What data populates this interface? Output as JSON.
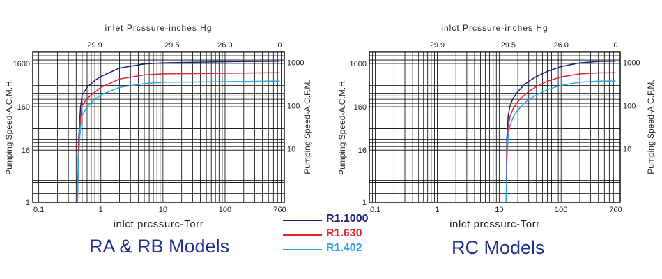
{
  "series_styles": [
    {
      "name": "R1.1000",
      "color": "#1a1f7a"
    },
    {
      "name": "R1.630",
      "color": "#e0262b"
    },
    {
      "name": "R1.402",
      "color": "#2aa6df"
    }
  ],
  "chart_data": [
    {
      "type": "line",
      "title": "RA & RB Models",
      "xlabel": "inlct prcssurc-Torr",
      "x2label": "inlet  Prcssure-inches Hg",
      "ylabel": "Pumping Speed-A.C.M.H.",
      "y2label": "Pumping Speed-A.C.F.M.",
      "x_scale": "log",
      "y_scale": "log",
      "xlim": [
        0.08,
        900
      ],
      "ylim": [
        1,
        3000
      ],
      "x_ticks": [
        {
          "v": 0.1,
          "t": "0.1"
        },
        {
          "v": 1,
          "t": "1"
        },
        {
          "v": 10,
          "t": "10"
        },
        {
          "v": 100,
          "t": "100"
        },
        {
          "v": 760,
          "t": "760"
        }
      ],
      "x2_ticks": [
        {
          "v": 0.8,
          "t": "29.9"
        },
        {
          "v": 14,
          "t": "29.5"
        },
        {
          "v": 100,
          "t": "26.0"
        },
        {
          "v": 760,
          "t": "0"
        }
      ],
      "y_ticks": [
        {
          "v": 1,
          "t": "1"
        },
        {
          "v": 16,
          "t": "16"
        },
        {
          "v": 160,
          "t": "160"
        },
        {
          "v": 1600,
          "t": "1600"
        }
      ],
      "y2_ticks": [
        {
          "v": 17,
          "t": "10"
        },
        {
          "v": 170,
          "t": "100"
        },
        {
          "v": 1700,
          "t": "1000"
        }
      ],
      "grid": true,
      "series": [
        {
          "name": "R1.1000",
          "x": [
            0.42,
            0.44,
            0.47,
            0.5,
            0.6,
            0.8,
            1,
            2,
            5,
            10,
            100,
            760
          ],
          "y": [
            1,
            30,
            150,
            300,
            450,
            650,
            800,
            1250,
            1550,
            1650,
            1750,
            1800
          ]
        },
        {
          "name": "R1.630",
          "x": [
            0.42,
            0.44,
            0.47,
            0.5,
            0.6,
            0.8,
            1,
            2,
            5,
            10,
            100,
            760
          ],
          "y": [
            1,
            20,
            85,
            170,
            250,
            350,
            450,
            700,
            870,
            920,
            950,
            980
          ]
        },
        {
          "name": "R1.402",
          "x": [
            0.42,
            0.44,
            0.47,
            0.5,
            0.6,
            0.8,
            1,
            2,
            5,
            10,
            100,
            760
          ],
          "y": [
            1,
            12,
            55,
            100,
            160,
            240,
            300,
            450,
            550,
            590,
            610,
            630
          ]
        }
      ]
    },
    {
      "type": "line",
      "title": "RC Models",
      "xlabel": "inlct prcssurc-Torr",
      "x2label": "inlct  Prcssure-inches Hg",
      "ylabel": "Pumping Speed-A.C.M.H.",
      "y2label": "Pumping Speed-A.C.F.M.",
      "x_scale": "log",
      "y_scale": "log",
      "xlim": [
        0.08,
        900
      ],
      "ylim": [
        1,
        3000
      ],
      "x_ticks": [
        {
          "v": 0.1,
          "t": "0.1"
        },
        {
          "v": 1,
          "t": "1"
        },
        {
          "v": 10,
          "t": "10"
        },
        {
          "v": 100,
          "t": "100"
        },
        {
          "v": 760,
          "t": "760"
        }
      ],
      "x2_ticks": [
        {
          "v": 1,
          "t": "29.9"
        },
        {
          "v": 14,
          "t": "29.5"
        },
        {
          "v": 100,
          "t": "26.0"
        },
        {
          "v": 760,
          "t": "0"
        }
      ],
      "y_ticks": [
        {
          "v": 1,
          "t": "1"
        },
        {
          "v": 16,
          "t": "16"
        },
        {
          "v": 160,
          "t": "160"
        },
        {
          "v": 1600,
          "t": "1600"
        }
      ],
      "y2_ticks": [
        {
          "v": 17,
          "t": "10"
        },
        {
          "v": 170,
          "t": "100"
        },
        {
          "v": 1700,
          "t": "1000"
        }
      ],
      "grid": true,
      "series": [
        {
          "name": "R1.1000",
          "x": [
            13,
            13.3,
            14,
            15,
            17,
            20,
            25,
            30,
            40,
            60,
            100,
            200,
            400,
            760
          ],
          "y": [
            1,
            30,
            100,
            170,
            260,
            360,
            500,
            620,
            800,
            1050,
            1350,
            1650,
            1780,
            1800
          ]
        },
        {
          "name": "R1.630",
          "x": [
            13,
            13.3,
            14,
            15,
            17,
            20,
            25,
            30,
            40,
            60,
            100,
            200,
            400,
            760
          ],
          "y": [
            1,
            15,
            55,
            95,
            150,
            210,
            290,
            360,
            470,
            620,
            780,
            920,
            970,
            980
          ]
        },
        {
          "name": "R1.402",
          "x": [
            13,
            13.3,
            14,
            15,
            17,
            20,
            25,
            30,
            40,
            60,
            100,
            200,
            400,
            760
          ],
          "y": [
            1,
            8,
            35,
            60,
            95,
            135,
            190,
            235,
            300,
            400,
            500,
            590,
            625,
            630
          ]
        }
      ]
    }
  ]
}
